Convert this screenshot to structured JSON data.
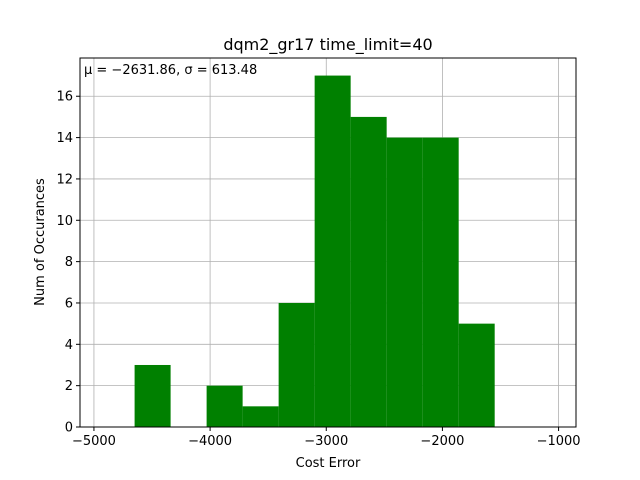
{
  "chart_data": {
    "type": "bar",
    "title": "dqm2_gr17 time_limit=40",
    "xlabel": "Cost Error",
    "ylabel": "Num of Occurances",
    "annotation": "μ = −2631.86,  σ = 613.48",
    "bar_color": "#008000",
    "grid": true,
    "xlim": [
      -5120,
      -850
    ],
    "ylim": [
      0,
      17.85
    ],
    "xticks": [
      -5000,
      -4000,
      -3000,
      -2000,
      -1000
    ],
    "xtick_labels": [
      "−5000",
      "−4000",
      "−3000",
      "−2000",
      "−1000"
    ],
    "yticks": [
      0,
      2,
      4,
      6,
      8,
      10,
      12,
      14,
      16
    ],
    "ytick_labels": [
      "0",
      "2",
      "4",
      "6",
      "8",
      "10",
      "12",
      "14",
      "16"
    ],
    "bins": [
      {
        "x0": -4650,
        "x1": -4340,
        "count": 3
      },
      {
        "x0": -4340,
        "x1": -4030,
        "count": 0
      },
      {
        "x0": -4030,
        "x1": -3720,
        "count": 2
      },
      {
        "x0": -3720,
        "x1": -3410,
        "count": 1
      },
      {
        "x0": -3410,
        "x1": -3100,
        "count": 6
      },
      {
        "x0": -3100,
        "x1": -2790,
        "count": 17
      },
      {
        "x0": -2790,
        "x1": -2480,
        "count": 15
      },
      {
        "x0": -2480,
        "x1": -2170,
        "count": 14
      },
      {
        "x0": -2170,
        "x1": -1860,
        "count": 14
      },
      {
        "x0": -1860,
        "x1": -1550,
        "count": 5
      }
    ]
  }
}
